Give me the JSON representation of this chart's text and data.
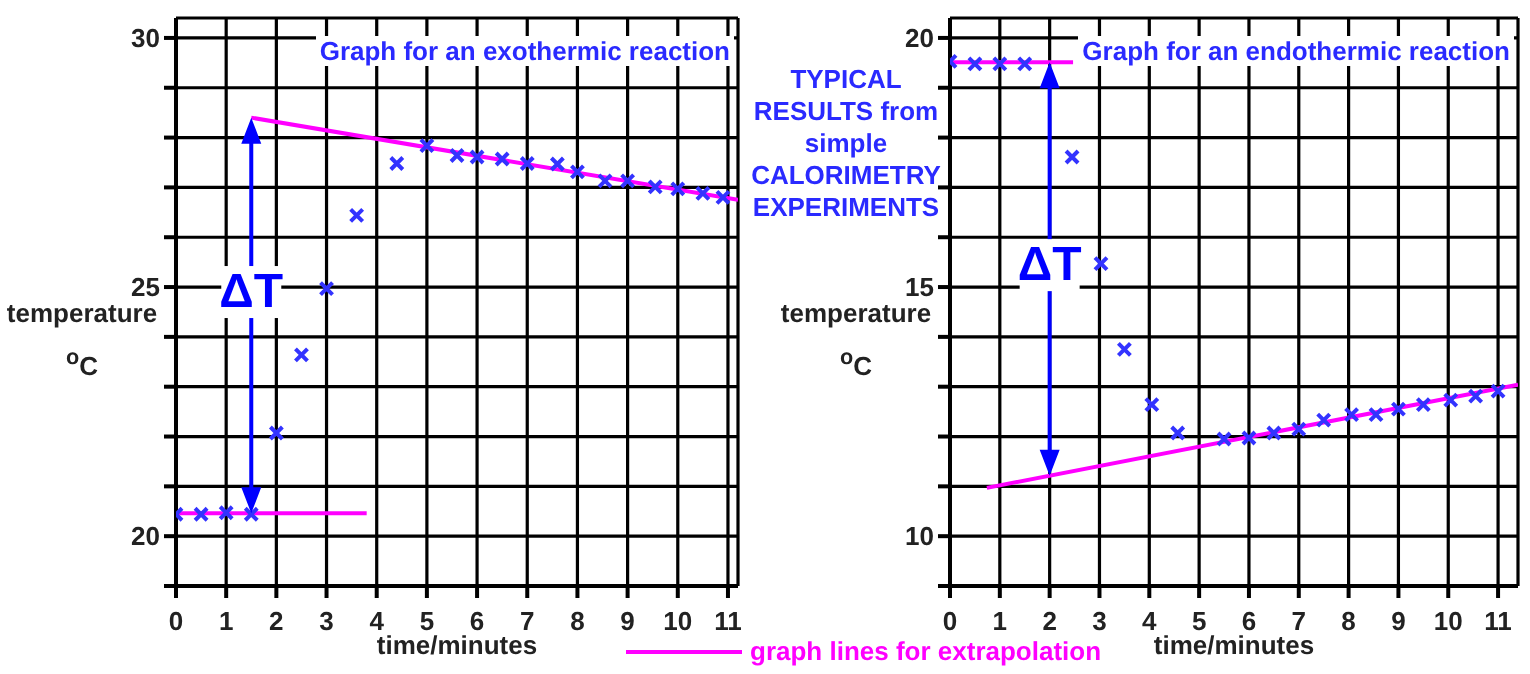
{
  "chart_data": [
    {
      "type": "scatter",
      "title": "Graph for an exothermic reaction",
      "xlabel": "time/minutes",
      "ylabel": "temperature $^{o}$C",
      "xlim": [
        0,
        11.2
      ],
      "ylim": [
        19,
        30.4
      ],
      "xticks": [
        0,
        1,
        2,
        3,
        4,
        5,
        6,
        7,
        8,
        9,
        10,
        11
      ],
      "yticks": [
        {
          "value": 19,
          "label": null
        },
        20,
        {
          "value": 21,
          "label": null
        },
        {
          "value": 22,
          "label": null
        },
        {
          "value": 23,
          "label": null
        },
        {
          "value": 24,
          "label": null
        },
        25,
        {
          "value": 26,
          "label": null
        },
        {
          "value": 27,
          "label": null
        },
        {
          "value": 28,
          "label": null
        },
        {
          "value": 29,
          "label": null
        },
        30
      ],
      "grid": true,
      "marker": "cross",
      "legend": "bottom",
      "annotations": [
        {
          "text": "ΔT",
          "x": 1.5,
          "y": 24.9
        }
      ],
      "series": [
        {
          "color": "#3333ff",
          "x": [
            0,
            0.5,
            1,
            1.5,
            2,
            2.5,
            3,
            3.6,
            4.4,
            5,
            5.6,
            6,
            6.5,
            7,
            7.6,
            8,
            8.55,
            9,
            9.55,
            10,
            10.5,
            10.9
          ],
          "values": [
            20.44,
            20.44,
            20.47,
            20.44,
            22.07,
            23.64,
            24.97,
            26.44,
            27.48,
            27.84,
            27.64,
            27.61,
            27.57,
            27.48,
            27.47,
            27.31,
            27.13,
            27.13,
            27.01,
            26.97,
            26.88,
            26.8
          ]
        },
        {
          "type": "line",
          "name": "graph lines for extrapolation",
          "marker": "none",
          "color": "#ff00ff",
          "x": [
            0,
            3.8
          ],
          "values": [
            20.46,
            20.46
          ]
        },
        {
          "type": "line",
          "marker": "none",
          "color": "#ff00ff",
          "x": [
            1.5,
            11.2
          ],
          "values": [
            28.4,
            26.75
          ]
        }
      ]
    },
    {
      "type": "scatter",
      "title": "Graph for an endothermic reaction",
      "xlabel": "time/minutes",
      "ylabel": "temperature $^{o}$C",
      "xlim": [
        0,
        11.4
      ],
      "ylim": [
        9,
        20.4
      ],
      "xticks": [
        0,
        1,
        2,
        3,
        4,
        5,
        6,
        7,
        8,
        9,
        10,
        11
      ],
      "yticks": [
        {
          "value": 9,
          "label": null
        },
        10,
        {
          "value": 11,
          "label": null
        },
        {
          "value": 12,
          "label": null
        },
        {
          "value": 13,
          "label": null
        },
        {
          "value": 14,
          "label": null
        },
        15,
        {
          "value": 16,
          "label": null
        },
        {
          "value": 17,
          "label": null
        },
        {
          "value": 18,
          "label": null
        },
        {
          "value": 19,
          "label": null
        },
        20
      ],
      "grid": true,
      "marker": "cross",
      "annotations": [
        {
          "text": "ΔT",
          "x": 2,
          "y": 15.44
        },
        "TYPICAL RESULTS from simple CALORIMETRY EXPERIMENTS"
      ],
      "series": [
        {
          "color": "#3333ff",
          "x": [
            0,
            0.5,
            1,
            1.5,
            2.45,
            3.03,
            3.5,
            4.05,
            4.57,
            5.5,
            6,
            6.5,
            7,
            7.5,
            8.06,
            8.55,
            9,
            9.5,
            10.05,
            10.55,
            11
          ],
          "values": [
            19.53,
            19.48,
            19.48,
            19.48,
            17.61,
            15.47,
            13.75,
            12.64,
            12.07,
            11.95,
            11.97,
            12.07,
            12.15,
            12.33,
            12.44,
            12.44,
            12.55,
            12.64,
            12.73,
            12.81,
            12.91
          ]
        },
        {
          "type": "line",
          "marker": "none",
          "color": "#ff00ff",
          "x": [
            0,
            2.47
          ],
          "values": [
            19.51,
            19.51
          ]
        },
        {
          "type": "line",
          "marker": "none",
          "color": "#ff00ff",
          "x": [
            0.74,
            11.4
          ],
          "values": [
            10.97,
            13.04
          ]
        }
      ]
    }
  ]
}
